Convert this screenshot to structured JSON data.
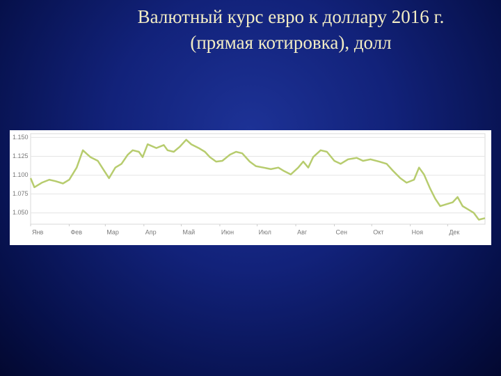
{
  "chart_data": {
    "type": "line",
    "title": "Валютный курс евро к доллару 2016 г.",
    "subtitle": "(прямая котировка), долл",
    "color": "#b7cc6e",
    "grid": true,
    "x": [
      1,
      4,
      10,
      16,
      21,
      27,
      32,
      38,
      43,
      49,
      55,
      60,
      64,
      69,
      74,
      79,
      83,
      88,
      91,
      95,
      102,
      108,
      111,
      116,
      121,
      126,
      130,
      136,
      141,
      145,
      150,
      155,
      161,
      166,
      171,
      177,
      182,
      188,
      194,
      200,
      204,
      210,
      216,
      220,
      224,
      228,
      234,
      239,
      245,
      250,
      256,
      263,
      268,
      274,
      281,
      287,
      292,
      298,
      303,
      309,
      313,
      317,
      322,
      326,
      330,
      334,
      340,
      344,
      348,
      352,
      357,
      361,
      366
    ],
    "values": [
      1.096,
      1.084,
      1.09,
      1.094,
      1.092,
      1.089,
      1.094,
      1.11,
      1.133,
      1.124,
      1.119,
      1.106,
      1.096,
      1.11,
      1.115,
      1.127,
      1.133,
      1.131,
      1.124,
      1.141,
      1.136,
      1.14,
      1.133,
      1.131,
      1.138,
      1.147,
      1.141,
      1.136,
      1.131,
      1.124,
      1.118,
      1.119,
      1.127,
      1.131,
      1.129,
      1.118,
      1.112,
      1.11,
      1.108,
      1.11,
      1.106,
      1.101,
      1.11,
      1.118,
      1.11,
      1.124,
      1.133,
      1.131,
      1.119,
      1.115,
      1.121,
      1.123,
      1.119,
      1.121,
      1.118,
      1.115,
      1.106,
      1.096,
      1.09,
      1.094,
      1.11,
      1.101,
      1.082,
      1.069,
      1.059,
      1.061,
      1.064,
      1.071,
      1.059,
      1.055,
      1.05,
      1.041,
      1.043
    ],
    "xlim": [
      1,
      366
    ],
    "xticks": [
      {
        "value": 1,
        "label": "Янв"
      },
      {
        "value": 32,
        "label": "Фев"
      },
      {
        "value": 61,
        "label": "Мар"
      },
      {
        "value": 92,
        "label": "Апр"
      },
      {
        "value": 122,
        "label": "Май"
      },
      {
        "value": 153,
        "label": "Июн"
      },
      {
        "value": 183,
        "label": "Июл"
      },
      {
        "value": 214,
        "label": "Авг"
      },
      {
        "value": 245,
        "label": "Сен"
      },
      {
        "value": 275,
        "label": "Окт"
      },
      {
        "value": 306,
        "label": "Ноя"
      },
      {
        "value": 336,
        "label": "Дек"
      }
    ],
    "ylim": [
      1.035,
      1.155
    ],
    "yticks": [
      {
        "value": 1.15,
        "label": "1.150"
      },
      1.125,
      {
        "value": 1.1,
        "label": "1.100"
      },
      1.075,
      {
        "value": 1.05,
        "label": "1.050"
      }
    ]
  }
}
